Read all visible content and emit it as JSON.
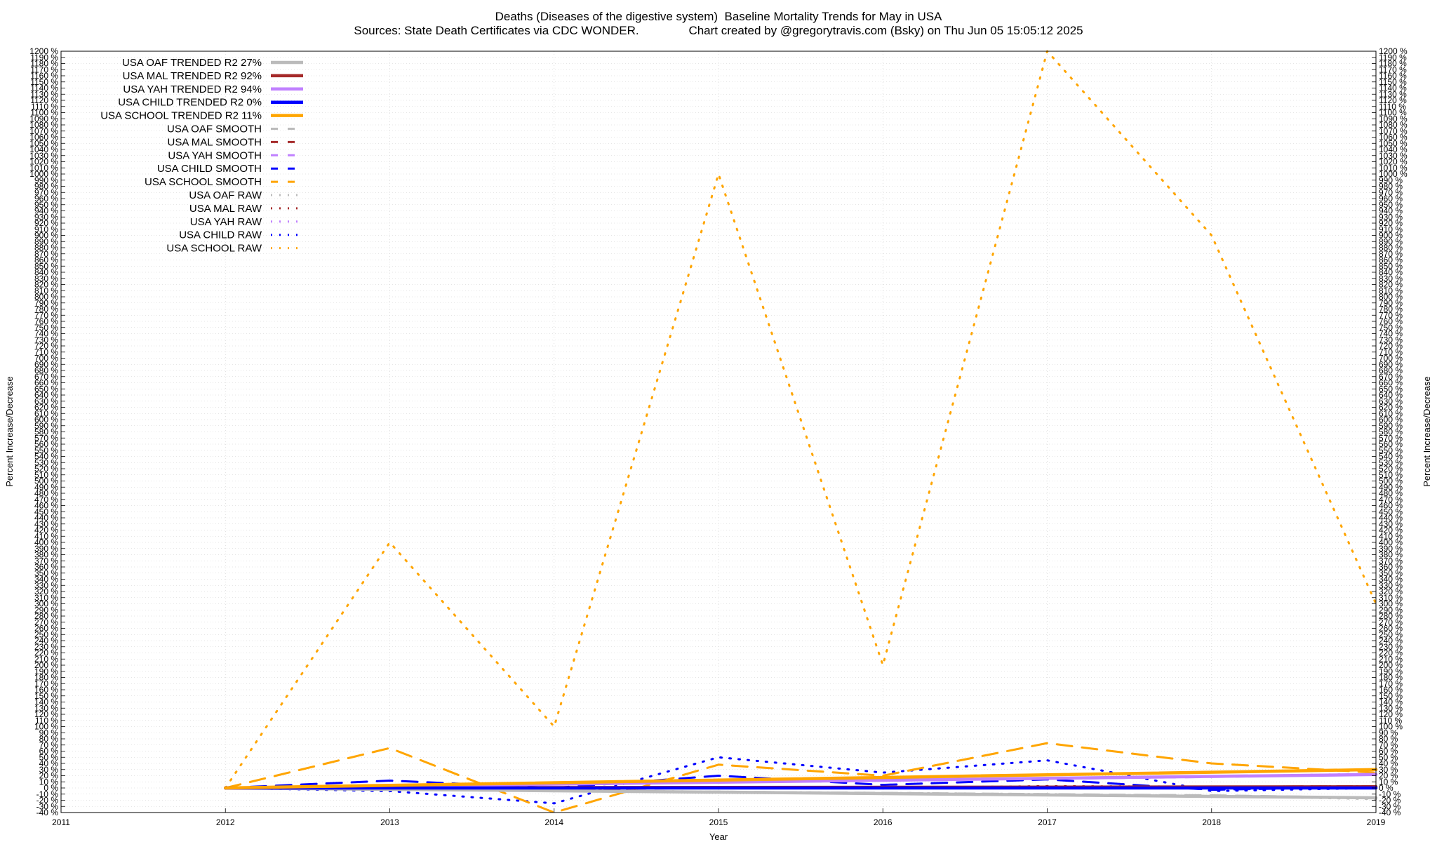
{
  "header": {
    "title": "Deaths (Diseases of the digestive system)  Baseline Mortality Trends for May in USA",
    "subtitle": "Sources: State Death Certificates via CDC WONDER.               Chart created by @gregorytravis.com (Bsky) on Thu Jun 05 15:05:12 2025"
  },
  "chart_data": {
    "type": "line",
    "xlabel": "Year",
    "ylabel": "Percent Increase/Decrease",
    "xlim": [
      2011,
      2019
    ],
    "ylim": [
      -40,
      1200
    ],
    "x_ticks": [
      "2011",
      "2012",
      "2013",
      "2014",
      "2015",
      "2016",
      "2017",
      "2018",
      "2019"
    ],
    "y_tick_step": 10,
    "y_tick_suffix": " %",
    "grid": true,
    "legend_position": "top-left",
    "series": [
      {
        "name": "USA OAF TRENDED R2  27%",
        "kind": "trend",
        "color": "#bbbbbb",
        "x": [
          2012,
          2019
        ],
        "y": [
          0,
          -16
        ]
      },
      {
        "name": "USA MAL TRENDED R2  92%",
        "kind": "trend",
        "color": "#a52a2a",
        "x": [
          2012,
          2019
        ],
        "y": [
          0,
          2
        ]
      },
      {
        "name": "USA YAH TRENDED R2  94%",
        "kind": "trend",
        "color": "#c080ff",
        "x": [
          2012,
          2019
        ],
        "y": [
          0,
          22
        ]
      },
      {
        "name": "USA CHILD TRENDED R2   0%",
        "kind": "trend",
        "color": "#0000ff",
        "x": [
          2012,
          2019
        ],
        "y": [
          0,
          0
        ]
      },
      {
        "name": "USA SCHOOL TRENDED R2  11%",
        "kind": "trend",
        "color": "#ffa500",
        "x": [
          2012,
          2019
        ],
        "y": [
          0,
          30
        ]
      },
      {
        "name": "USA OAF SMOOTH",
        "kind": "smooth",
        "color": "#bbbbbb",
        "x": [
          2012,
          2013,
          2014,
          2015,
          2016,
          2017,
          2018,
          2019
        ],
        "y": [
          0,
          -3,
          -5,
          -6,
          -8,
          -10,
          -12,
          -16
        ]
      },
      {
        "name": "USA MAL SMOOTH",
        "kind": "smooth",
        "color": "#a52a2a",
        "x": [
          2012,
          2013,
          2014,
          2015,
          2016,
          2017,
          2018,
          2019
        ],
        "y": [
          0,
          -1,
          -2,
          0,
          1,
          2,
          2,
          3
        ]
      },
      {
        "name": "USA YAH SMOOTH",
        "kind": "smooth",
        "color": "#c080ff",
        "x": [
          2012,
          2013,
          2014,
          2015,
          2016,
          2017,
          2018,
          2019
        ],
        "y": [
          0,
          3,
          6,
          9,
          12,
          15,
          18,
          22
        ]
      },
      {
        "name": "USA CHILD SMOOTH",
        "kind": "smooth",
        "color": "#0000ff",
        "x": [
          2012,
          2013,
          2014,
          2015,
          2016,
          2017,
          2018,
          2019
        ],
        "y": [
          0,
          12,
          0,
          20,
          5,
          14,
          -3,
          2
        ]
      },
      {
        "name": "USA SCHOOL SMOOTH",
        "kind": "smooth",
        "color": "#ffa500",
        "x": [
          2012,
          2013,
          2014,
          2015,
          2016,
          2017,
          2018,
          2019
        ],
        "y": [
          0,
          65,
          -40,
          38,
          20,
          73,
          40,
          25
        ]
      },
      {
        "name": "USA OAF RAW",
        "kind": "raw",
        "color": "#bbbbbb",
        "x": [
          2012,
          2013,
          2014,
          2015,
          2016,
          2017,
          2018,
          2019
        ],
        "y": [
          0,
          -2,
          -4,
          -6,
          -8,
          -10,
          -13,
          -18
        ]
      },
      {
        "name": "USA MAL RAW",
        "kind": "raw",
        "color": "#a52a2a",
        "x": [
          2012,
          2013,
          2014,
          2015,
          2016,
          2017,
          2018,
          2019
        ],
        "y": [
          0,
          -2,
          -3,
          1,
          0,
          3,
          2,
          3
        ]
      },
      {
        "name": "USA YAH RAW",
        "kind": "raw",
        "color": "#c080ff",
        "x": [
          2012,
          2013,
          2014,
          2015,
          2016,
          2017,
          2018,
          2019
        ],
        "y": [
          0,
          4,
          7,
          9,
          12,
          16,
          19,
          23
        ]
      },
      {
        "name": "USA CHILD RAW",
        "kind": "raw",
        "color": "#0000ff",
        "x": [
          2012,
          2013,
          2014,
          2015,
          2016,
          2017,
          2018,
          2019
        ],
        "y": [
          0,
          -5,
          -25,
          50,
          25,
          45,
          -5,
          0
        ]
      },
      {
        "name": "USA SCHOOL RAW",
        "kind": "raw",
        "color": "#ffa500",
        "x": [
          2012,
          2013,
          2014,
          2015,
          2016,
          2017,
          2018,
          2019
        ],
        "y": [
          0,
          400,
          100,
          1000,
          200,
          1200,
          900,
          300
        ]
      }
    ]
  }
}
